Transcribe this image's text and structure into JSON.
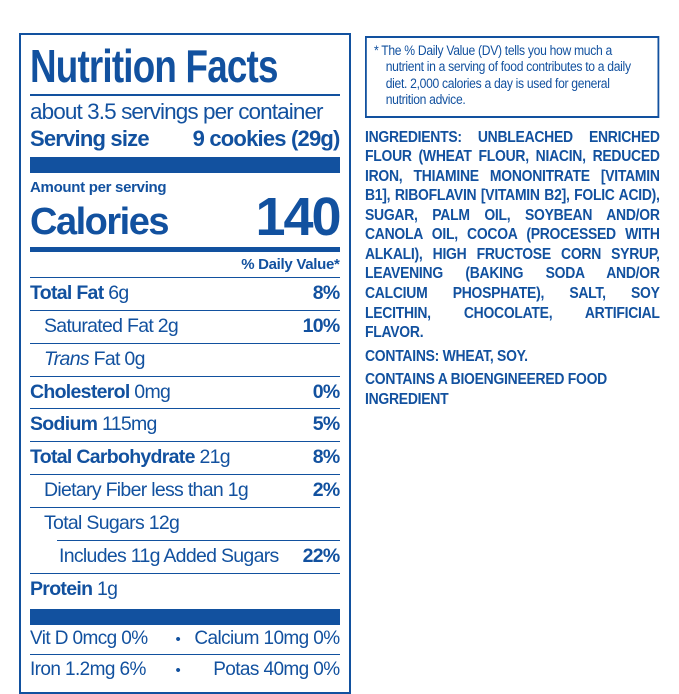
{
  "colors": {
    "blue": "#12519f",
    "bg": "#ffffff"
  },
  "panel": {
    "title": "Nutrition Facts",
    "servings_per_container": "about 3.5 servings per container",
    "serving_size_label": "Serving size",
    "serving_size_value": "9 cookies (29g)",
    "amount_per_serving_label": "Amount per serving",
    "calories_label": "Calories",
    "calories_value": "140",
    "daily_value_header": "% Daily Value*",
    "rows": [
      {
        "name": "Total Fat",
        "amount": "6g",
        "dv": "8%"
      },
      {
        "name": "Saturated Fat",
        "amount": "2g",
        "dv": "10%"
      },
      {
        "italic": "Trans",
        "name": " Fat",
        "amount": "0g",
        "dv": ""
      },
      {
        "name": "Cholesterol",
        "amount": "0mg",
        "dv": "0%"
      },
      {
        "name": "Sodium",
        "amount": "115mg",
        "dv": "5%"
      },
      {
        "name": "Total Carbohydrate",
        "amount": "21g",
        "dv": "8%"
      },
      {
        "name": "Dietary Fiber",
        "amount": "less than 1g",
        "dv": "2%"
      },
      {
        "name": "Total Sugars",
        "amount": "12g",
        "dv": ""
      },
      {
        "name": "Includes 11g Added Sugars",
        "amount": "",
        "dv": "22%"
      },
      {
        "name": "Protein",
        "amount": "1g",
        "dv": ""
      }
    ],
    "bullet": "•",
    "micronutrients": [
      {
        "left": "Vit D 0mcg 0%",
        "right": "Calcium 10mg 0%"
      },
      {
        "left": "Iron 1.2mg 6%",
        "right": "Potas 40mg 0%"
      }
    ]
  },
  "footnote": {
    "text": "* The % Daily Value (DV) tells you how much a nutrient in a serving of food contributes to a daily diet. 2,000 calories a day is used for general nutrition advice."
  },
  "ingredients": {
    "paragraph": "INGREDIENTS: UNBLEACHED ENRICHED FLOUR (WHEAT FLOUR, NIACIN, REDUCED IRON, THIAMINE MONONITRATE [VITAMIN B1], RIBOFLAVIN [VITAMIN B2], FOLIC ACID), SUGAR, PALM OIL, SOYBEAN AND/OR CANOLA OIL, COCOA (PROCESSED WITH ALKALI), HIGH FRUCTOSE CORN SYRUP, LEAVENING (BAKING SODA AND/OR CALCIUM PHOSPHATE), SALT, SOY LECITHIN, CHOCOLATE, ARTIFICIAL FLAVOR.",
    "contains": "CONTAINS: WHEAT, SOY.",
    "bioengineered": "CONTAINS A BIOENGINEERED FOOD INGREDIENT"
  }
}
